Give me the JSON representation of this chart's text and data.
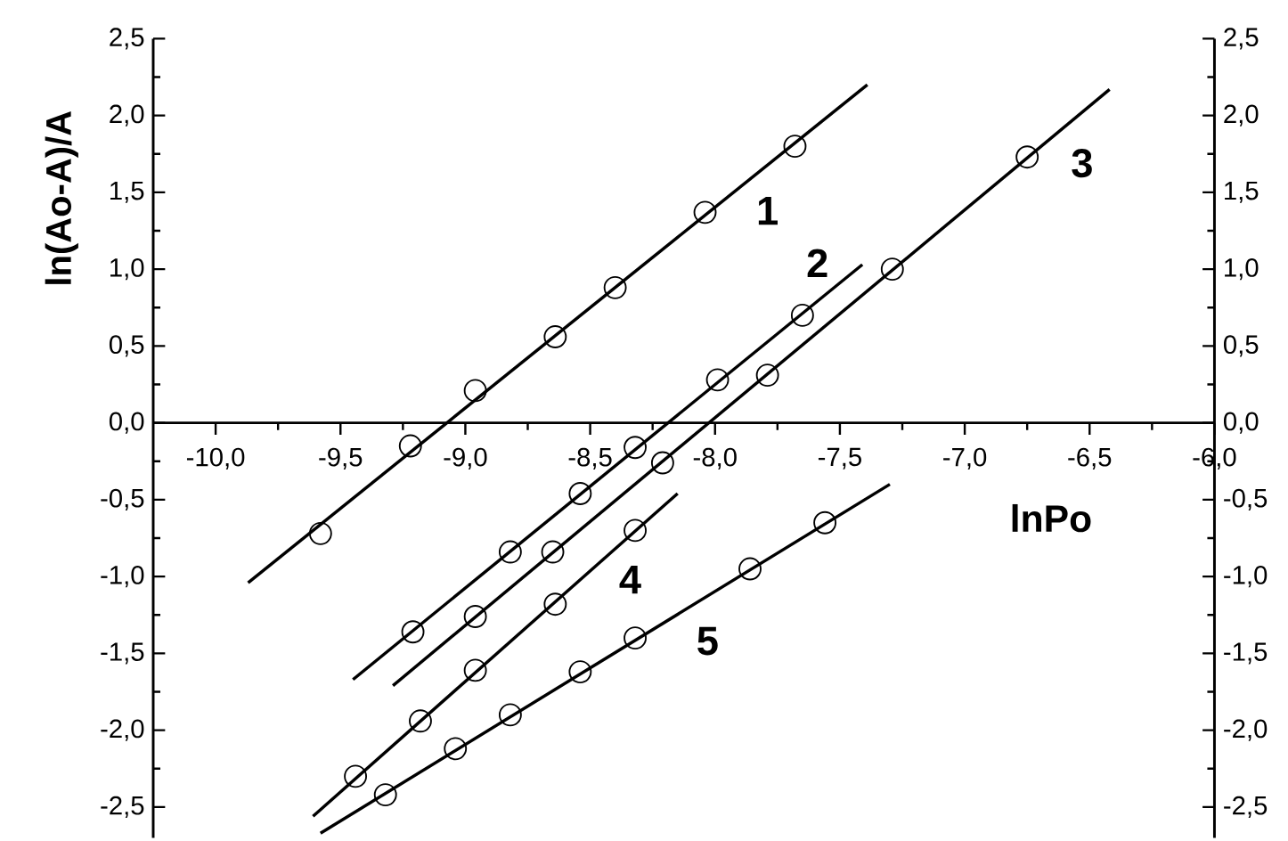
{
  "chart_data": {
    "type": "scatter",
    "xlabel": "lnPo",
    "ylabel": "ln(Ao-A)/A",
    "xlim": [
      -10.25,
      -6.0
    ],
    "ylim": [
      -2.7,
      2.5
    ],
    "y2lim": [
      -2.7,
      2.5
    ],
    "xticks": [
      {
        "value": -10.0,
        "label": "-10,0"
      },
      {
        "value": -9.5,
        "label": "-9,5"
      },
      {
        "value": -9.0,
        "label": "-9,0"
      },
      {
        "value": -8.5,
        "label": "-8,5"
      },
      {
        "value": -8.0,
        "label": "-8,0"
      },
      {
        "value": -7.5,
        "label": "-7,5"
      },
      {
        "value": -7.0,
        "label": "-7,0"
      },
      {
        "value": -6.5,
        "label": "-6,5"
      },
      {
        "value": -6.0,
        "label": "-6,0"
      }
    ],
    "yticks": [
      {
        "value": -2.5,
        "label": "-2,5"
      },
      {
        "value": -2.0,
        "label": "-2,0"
      },
      {
        "value": -1.5,
        "label": "-1,5"
      },
      {
        "value": -1.0,
        "label": "-1,0"
      },
      {
        "value": -0.5,
        "label": "-0,5"
      },
      {
        "value": 0.0,
        "label": "0,0"
      },
      {
        "value": 0.5,
        "label": "0,5"
      },
      {
        "value": 1.0,
        "label": "1,0"
      },
      {
        "value": 1.5,
        "label": "1,5"
      },
      {
        "value": 2.0,
        "label": "2,0"
      },
      {
        "value": 2.5,
        "label": "2,5"
      }
    ],
    "y2ticks": [
      {
        "value": -2.5,
        "label": "-2,5"
      },
      {
        "value": -2.0,
        "label": "-2,0"
      },
      {
        "value": -1.5,
        "label": "-1,5"
      },
      {
        "value": -1.0,
        "label": "-1,0"
      },
      {
        "value": -0.5,
        "label": "-0,5"
      },
      {
        "value": 0.0,
        "label": "0,0"
      },
      {
        "value": 0.5,
        "label": "0,5"
      },
      {
        "value": 1.0,
        "label": "1,0"
      },
      {
        "value": 1.5,
        "label": "1,5"
      },
      {
        "value": 2.0,
        "label": "2,0"
      },
      {
        "value": 2.5,
        "label": "2,5"
      }
    ],
    "series": [
      {
        "name": "1",
        "marker": "circle",
        "color": "#000000",
        "x": [
          -9.58,
          -9.22,
          -8.96,
          -8.64,
          -8.4,
          -8.04,
          -7.68
        ],
        "values": [
          -0.72,
          -0.15,
          0.21,
          0.56,
          0.88,
          1.37,
          1.8
        ]
      },
      {
        "type": "line",
        "marker": "none",
        "color": "#000000",
        "x": [
          -9.87,
          -7.39
        ],
        "values": [
          -1.04,
          2.2
        ]
      },
      {
        "name": "2",
        "marker": "circle",
        "color": "#000000",
        "x": [
          -9.21,
          -8.82,
          -8.54,
          -8.32,
          -7.99,
          -7.65
        ],
        "values": [
          -1.36,
          -0.84,
          -0.46,
          -0.16,
          0.28,
          0.7
        ]
      },
      {
        "type": "line",
        "marker": "none",
        "color": "#000000",
        "x": [
          -9.45,
          -7.41
        ],
        "values": [
          -1.67,
          1.03
        ]
      },
      {
        "name": "3",
        "marker": "circle",
        "color": "#000000",
        "x": [
          -8.96,
          -8.65,
          -8.21,
          -7.79,
          -7.29,
          -6.75
        ],
        "values": [
          -1.26,
          -0.84,
          -0.26,
          0.31,
          1.0,
          1.73
        ]
      },
      {
        "type": "line",
        "marker": "none",
        "color": "#000000",
        "x": [
          -9.29,
          -6.42
        ],
        "values": [
          -1.71,
          2.17
        ]
      },
      {
        "name": "4",
        "marker": "circle",
        "color": "#000000",
        "x": [
          -9.44,
          -9.18,
          -8.96,
          -8.64,
          -8.32
        ],
        "values": [
          -2.3,
          -1.94,
          -1.61,
          -1.18,
          -0.7
        ]
      },
      {
        "type": "line",
        "marker": "none",
        "color": "#000000",
        "x": [
          -9.61,
          -8.15
        ],
        "values": [
          -2.56,
          -0.46
        ]
      },
      {
        "name": "5",
        "marker": "circle",
        "color": "#000000",
        "x": [
          -9.32,
          -9.04,
          -8.82,
          -8.54,
          -8.32,
          -7.86,
          -7.56
        ],
        "values": [
          -2.42,
          -2.12,
          -1.9,
          -1.62,
          -1.4,
          -0.95,
          -0.65
        ]
      },
      {
        "type": "line",
        "marker": "none",
        "color": "#000000",
        "x": [
          -9.58,
          -7.3
        ],
        "values": [
          -2.67,
          -0.4
        ]
      }
    ]
  }
}
